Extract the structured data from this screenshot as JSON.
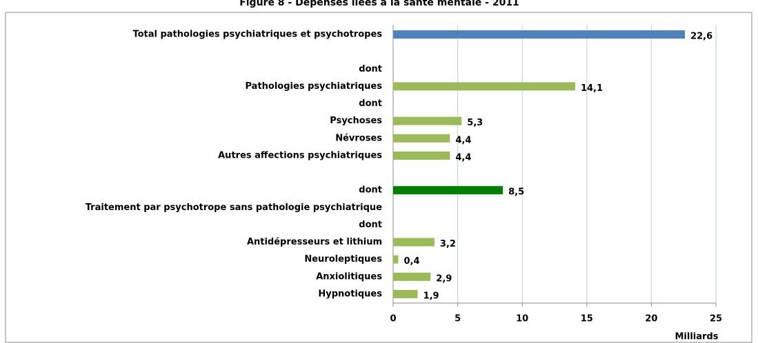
{
  "chart_data": {
    "type": "barh",
    "title": "Figure 8 - Dépenses liées à la santé mentale - 2011",
    "x_label": "Milliards",
    "categories": [
      "Total pathologies psychiatriques et psychotropes",
      null,
      "dont",
      "Pathologies psychiatriques",
      "dont",
      "Psychoses",
      "Névroses",
      "Autres affections psychiatriques",
      null,
      "dont",
      "Traitement par psychotrope sans pathologie psychiatrique",
      "dont",
      "Antidépresseurs et lithium",
      "Neuroleptiques",
      "Anxiolitiques",
      "Hypnotiques"
    ],
    "values": [
      22.6,
      null,
      null,
      14.1,
      null,
      5.3,
      4.4,
      4.4,
      null,
      8.5,
      null,
      null,
      3.2,
      0.4,
      2.9,
      1.9
    ],
    "value_labels": [
      "22,6",
      null,
      null,
      "14,1",
      null,
      "5,3",
      "4,4",
      "4,4",
      null,
      "8,5",
      null,
      null,
      "3,2",
      "0,4",
      "2,9",
      "1,9"
    ],
    "colors": [
      "#4f81bd",
      null,
      null,
      "#9bbb59",
      null,
      "#9bbb59",
      "#9bbb59",
      "#9bbb59",
      null,
      "#008000",
      null,
      null,
      "#9bbb59",
      "#9bbb59",
      "#9bbb59",
      "#9bbb59"
    ],
    "xlim": [
      0,
      25
    ],
    "xticks": [
      0,
      5,
      10,
      15,
      20,
      25
    ],
    "grid": true,
    "grid_color": "#b9cde5"
  }
}
